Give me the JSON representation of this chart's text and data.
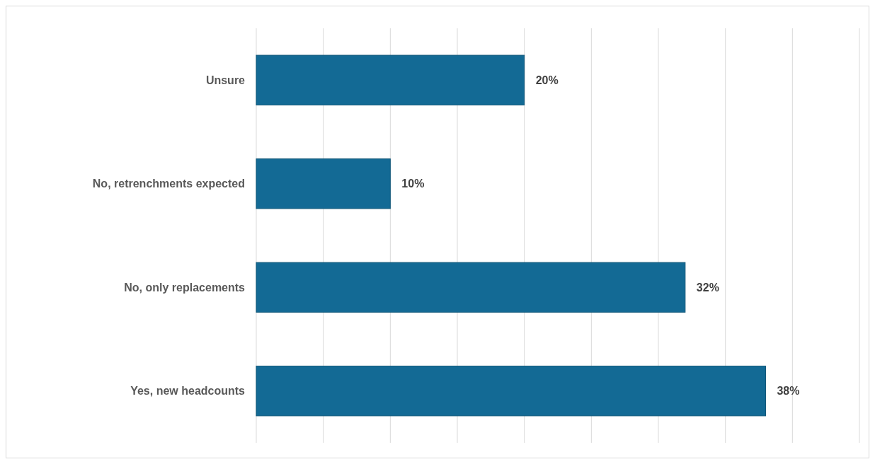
{
  "chart_data": {
    "type": "bar",
    "orientation": "horizontal",
    "categories": [
      "Unsure",
      "No, retrenchments expected",
      "No, only replacements",
      "Yes, new headcounts"
    ],
    "values": [
      20,
      10,
      32,
      38
    ],
    "value_labels": [
      "20%",
      "10%",
      "32%",
      "38%"
    ],
    "color": "#136a95",
    "xlim": [
      0,
      45
    ],
    "xticks": [
      {
        "value": 0,
        "label": null
      },
      {
        "value": 5,
        "label": null
      },
      {
        "value": 10,
        "label": null
      },
      {
        "value": 15,
        "label": null
      },
      {
        "value": 20,
        "label": null
      },
      {
        "value": 25,
        "label": null
      },
      {
        "value": 30,
        "label": null
      },
      {
        "value": 35,
        "label": null
      },
      {
        "value": 40,
        "label": null
      },
      {
        "value": 45,
        "label": null
      }
    ],
    "grid": "x",
    "tick_labels": "y"
  }
}
